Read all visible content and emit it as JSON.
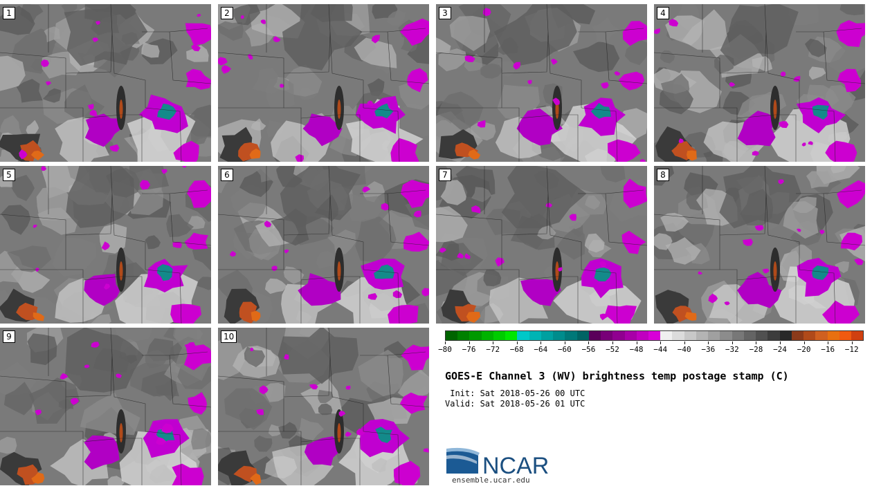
{
  "panels": [
    "1",
    "2",
    "3",
    "4",
    "5",
    "6",
    "7",
    "8",
    "9",
    "10"
  ],
  "colorbar": {
    "colors": [
      "#006400",
      "#008000",
      "#009900",
      "#00b300",
      "#00cc00",
      "#00e600",
      "#00c8c8",
      "#00b4b4",
      "#00a0a0",
      "#008c8c",
      "#007878",
      "#006464",
      "#5a005a",
      "#780078",
      "#900090",
      "#a800a8",
      "#c000c0",
      "#d800d8",
      "#f0f0f0",
      "#dcdcdc",
      "#c8c8c8",
      "#b4b4b4",
      "#a0a0a0",
      "#8c8c8c",
      "#787878",
      "#646464",
      "#505050",
      "#3c3c3c",
      "#282828",
      "#8b3a1a",
      "#b04a1a",
      "#d06020",
      "#e87010",
      "#f05a10",
      "#d04010"
    ],
    "ticks": [
      "−80",
      "−76",
      "−72",
      "−68",
      "−64",
      "−60",
      "−56",
      "−52",
      "−48",
      "−44",
      "−40",
      "−36",
      "−32",
      "−28",
      "−24",
      "−20",
      "−16",
      "−12"
    ]
  },
  "title": "GOES-E Channel 3 (WV) brightness temp postage stamp (C)",
  "init": " Init: Sat 2018-05-26 00 UTC",
  "valid": "Valid: Sat 2018-05-26 01 UTC",
  "logo": {
    "text": "NCAR",
    "url": "ensemble.ucar.edu"
  }
}
